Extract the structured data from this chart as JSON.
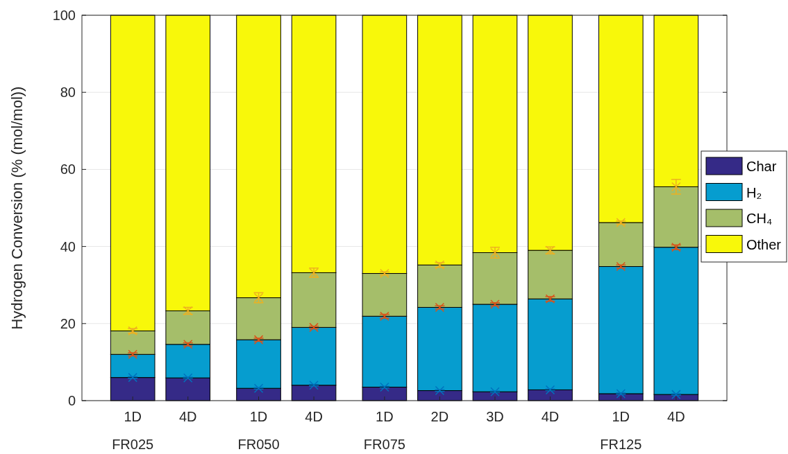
{
  "chart_data": {
    "type": "bar",
    "stacked": true,
    "ylabel": "Hydrogen Conversion (% (mol/mol))",
    "categories": [
      "1D\nFR025",
      "4D",
      "1D\nFR050",
      "4D",
      "1D\nFR075",
      "2D",
      "3D",
      "4D",
      "1D\nFR125",
      "4D"
    ],
    "series": [
      {
        "name": "Char",
        "color": "#352a87",
        "values": [
          6.0,
          5.9,
          3.2,
          4.0,
          3.5,
          2.6,
          2.3,
          2.8,
          1.8,
          1.6
        ]
      },
      {
        "name": "H₂",
        "color": "#069dcf",
        "values": [
          6.0,
          8.7,
          12.6,
          15.0,
          18.4,
          21.6,
          22.7,
          23.6,
          33.0,
          38.2
        ]
      },
      {
        "name": "CH₄",
        "color": "#a5be6a",
        "values": [
          6.1,
          8.7,
          10.9,
          14.2,
          11.1,
          11.0,
          13.4,
          12.6,
          11.4,
          15.7
        ]
      },
      {
        "name": "Other",
        "color": "#f8f80a",
        "values": [
          81.9,
          76.7,
          73.3,
          66.8,
          67.0,
          64.8,
          61.6,
          61.0,
          53.8,
          44.5
        ]
      },
      {
        "type": "scatter",
        "marker": "cross",
        "color": "#0072bd",
        "values": [
          6.0,
          5.9,
          3.2,
          4.0,
          3.5,
          2.6,
          2.3,
          2.8,
          1.8,
          1.6
        ],
        "errors": [
          0.2,
          0.2,
          0.2,
          0.2,
          0.2,
          0.2,
          0.2,
          0.2,
          0.2,
          0.2
        ]
      },
      {
        "type": "scatter",
        "marker": "cross",
        "color": "#d95319",
        "values": [
          12.0,
          14.6,
          15.8,
          19.0,
          21.9,
          24.2,
          25.0,
          26.4,
          34.8,
          39.8
        ],
        "errors": [
          0.4,
          0.4,
          0.4,
          0.3,
          0.5,
          0.4,
          0.4,
          0.6,
          0.4,
          0.6
        ]
      },
      {
        "type": "scatter",
        "marker": "cross",
        "color": "#edb120",
        "values": [
          18.1,
          23.3,
          26.7,
          33.2,
          33.0,
          35.2,
          38.4,
          39.0,
          46.2,
          55.5
        ],
        "errors": [
          0.6,
          0.9,
          1.3,
          1.2,
          0.4,
          0.6,
          1.4,
          0.9,
          0.4,
          1.9
        ]
      }
    ],
    "ylim": [
      0,
      100
    ],
    "yticks": [
      0,
      20,
      40,
      60,
      80,
      100
    ],
    "grid": "y",
    "legend": "right"
  }
}
